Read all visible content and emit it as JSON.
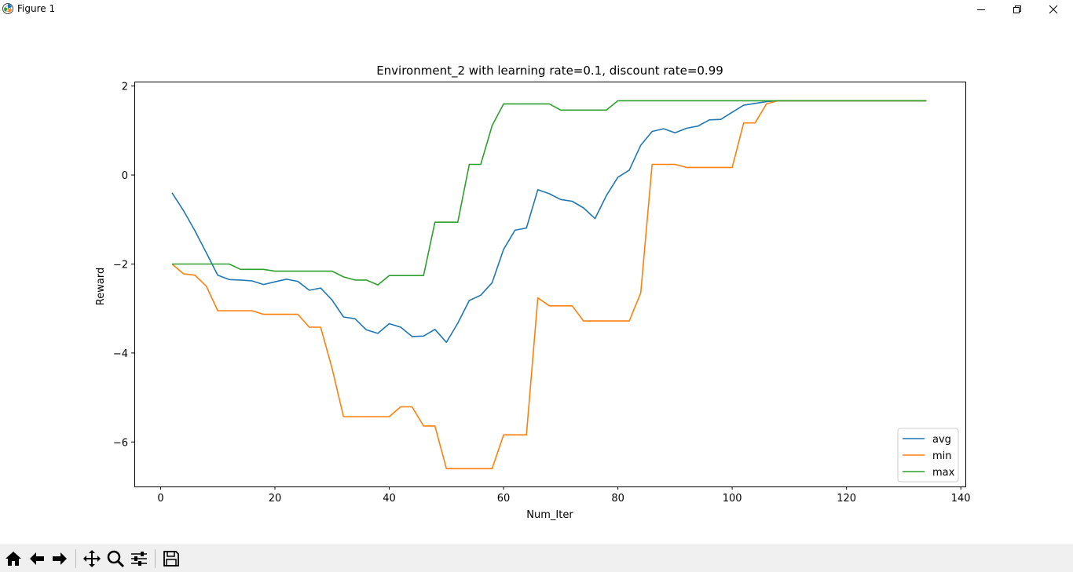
{
  "window": {
    "title": "Figure 1",
    "icons": [
      "matplotlib-icon",
      "minimize-icon",
      "restore-icon",
      "close-icon"
    ]
  },
  "toolbar": {
    "buttons": [
      "home-icon",
      "back-icon",
      "forward-icon",
      "pan-icon",
      "zoom-icon",
      "configure-subplots-icon",
      "save-icon"
    ]
  },
  "chart_data": {
    "type": "line",
    "title": "Environment_2 with learning rate=0.1, discount rate=0.99",
    "xlabel": "Num_Iter",
    "ylabel": "Reward",
    "xlim": [
      -4.6,
      140.8
    ],
    "ylim": [
      -7.0,
      2.1
    ],
    "xticks": [
      0,
      20,
      40,
      60,
      80,
      100,
      120,
      140
    ],
    "yticks": [
      -6,
      -4,
      -2,
      0,
      2
    ],
    "grid": false,
    "legend_position": "lower right",
    "series": [
      {
        "name": "avg",
        "color": "#1f77b4",
        "points": [
          [
            2,
            -0.4
          ],
          [
            4,
            -0.8
          ],
          [
            6,
            -1.25
          ],
          [
            8,
            -1.75
          ],
          [
            10,
            -2.25
          ],
          [
            12,
            -2.35
          ],
          [
            14,
            -2.36
          ],
          [
            16,
            -2.38
          ],
          [
            18,
            -2.46
          ],
          [
            20,
            -2.4
          ],
          [
            22,
            -2.34
          ],
          [
            24,
            -2.39
          ],
          [
            26,
            -2.59
          ],
          [
            28,
            -2.54
          ],
          [
            30,
            -2.81
          ],
          [
            32,
            -3.19
          ],
          [
            34,
            -3.23
          ],
          [
            36,
            -3.48
          ],
          [
            38,
            -3.56
          ],
          [
            40,
            -3.34
          ],
          [
            42,
            -3.42
          ],
          [
            44,
            -3.63
          ],
          [
            46,
            -3.62
          ],
          [
            48,
            -3.47
          ],
          [
            50,
            -3.76
          ],
          [
            52,
            -3.33
          ],
          [
            54,
            -2.82
          ],
          [
            56,
            -2.7
          ],
          [
            58,
            -2.42
          ],
          [
            60,
            -1.67
          ],
          [
            62,
            -1.24
          ],
          [
            64,
            -1.19
          ],
          [
            66,
            -0.33
          ],
          [
            68,
            -0.42
          ],
          [
            70,
            -0.55
          ],
          [
            72,
            -0.59
          ],
          [
            74,
            -0.74
          ],
          [
            76,
            -0.98
          ],
          [
            78,
            -0.46
          ],
          [
            80,
            -0.05
          ],
          [
            82,
            0.11
          ],
          [
            84,
            0.67
          ],
          [
            86,
            0.98
          ],
          [
            88,
            1.04
          ],
          [
            90,
            0.95
          ],
          [
            92,
            1.05
          ],
          [
            94,
            1.1
          ],
          [
            96,
            1.24
          ],
          [
            98,
            1.25
          ],
          [
            100,
            1.41
          ],
          [
            102,
            1.57
          ],
          [
            104,
            1.61
          ],
          [
            106,
            1.65
          ],
          [
            108,
            1.67
          ],
          [
            134,
            1.67
          ]
        ]
      },
      {
        "name": "min",
        "color": "#ff7f0e",
        "points": [
          [
            2,
            -2.0
          ],
          [
            4,
            -2.22
          ],
          [
            6,
            -2.25
          ],
          [
            8,
            -2.5
          ],
          [
            10,
            -3.05
          ],
          [
            16,
            -3.05
          ],
          [
            18,
            -3.13
          ],
          [
            24,
            -3.13
          ],
          [
            26,
            -3.42
          ],
          [
            28,
            -3.42
          ],
          [
            30,
            -4.35
          ],
          [
            32,
            -5.43
          ],
          [
            40,
            -5.43
          ],
          [
            42,
            -5.21
          ],
          [
            44,
            -5.21
          ],
          [
            46,
            -5.64
          ],
          [
            48,
            -5.64
          ],
          [
            50,
            -6.6
          ],
          [
            58,
            -6.6
          ],
          [
            60,
            -5.84
          ],
          [
            64,
            -5.84
          ],
          [
            66,
            -2.76
          ],
          [
            68,
            -2.94
          ],
          [
            72,
            -2.94
          ],
          [
            74,
            -3.28
          ],
          [
            82,
            -3.28
          ],
          [
            84,
            -2.65
          ],
          [
            86,
            0.24
          ],
          [
            90,
            0.24
          ],
          [
            92,
            0.17
          ],
          [
            100,
            0.17
          ],
          [
            102,
            1.17
          ],
          [
            104,
            1.17
          ],
          [
            106,
            1.6
          ],
          [
            108,
            1.67
          ],
          [
            134,
            1.67
          ]
        ]
      },
      {
        "name": "max",
        "color": "#2ca02c",
        "points": [
          [
            2,
            -2.0
          ],
          [
            12,
            -2.0
          ],
          [
            14,
            -2.12
          ],
          [
            18,
            -2.12
          ],
          [
            20,
            -2.16
          ],
          [
            30,
            -2.16
          ],
          [
            32,
            -2.29
          ],
          [
            34,
            -2.36
          ],
          [
            36,
            -2.36
          ],
          [
            38,
            -2.47
          ],
          [
            40,
            -2.26
          ],
          [
            46,
            -2.26
          ],
          [
            48,
            -1.06
          ],
          [
            52,
            -1.06
          ],
          [
            54,
            0.24
          ],
          [
            56,
            0.24
          ],
          [
            58,
            1.11
          ],
          [
            60,
            1.6
          ],
          [
            68,
            1.6
          ],
          [
            70,
            1.46
          ],
          [
            78,
            1.46
          ],
          [
            80,
            1.67
          ],
          [
            134,
            1.67
          ]
        ]
      }
    ]
  }
}
